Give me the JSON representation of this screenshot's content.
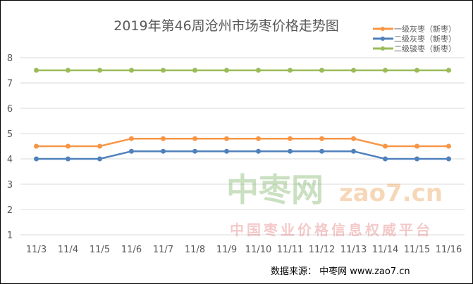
{
  "chart_data": {
    "type": "line",
    "title": "2019年第46周沧州市场枣价格走势图",
    "categories": [
      "11/3",
      "11/4",
      "11/5",
      "11/6",
      "11/7",
      "11/8",
      "11/9",
      "11/10",
      "11/11",
      "11/12",
      "11/13",
      "11/14",
      "11/15",
      "11/16"
    ],
    "ylim": [
      1,
      8
    ],
    "yticks": [
      "1",
      "2",
      "3",
      "4",
      "5",
      "6",
      "7",
      "8"
    ],
    "grid": true,
    "legend_position": "top-right",
    "series": [
      {
        "name": "一级灰枣（新枣）",
        "color": "#f79646",
        "values": [
          4.5,
          4.5,
          4.5,
          4.8,
          4.8,
          4.8,
          4.8,
          4.8,
          4.8,
          4.8,
          4.8,
          4.5,
          4.5,
          4.5
        ]
      },
      {
        "name": "二级灰枣（新枣）",
        "color": "#4f81bd",
        "values": [
          4.0,
          4.0,
          4.0,
          4.3,
          4.3,
          4.3,
          4.3,
          4.3,
          4.3,
          4.3,
          4.3,
          4.0,
          4.0,
          4.0
        ]
      },
      {
        "name": "二级骏枣（新枣）",
        "color": "#9bbb59",
        "values": [
          7.5,
          7.5,
          7.5,
          7.5,
          7.5,
          7.5,
          7.5,
          7.5,
          7.5,
          7.5,
          7.5,
          7.5,
          7.5,
          7.5
        ]
      }
    ]
  },
  "watermark": {
    "cn": "中枣网",
    "url": "zao7.cn",
    "slogan": "中国枣业价格信息权威平台"
  },
  "source": "数据来源：   中枣网 www.zao7.cn"
}
